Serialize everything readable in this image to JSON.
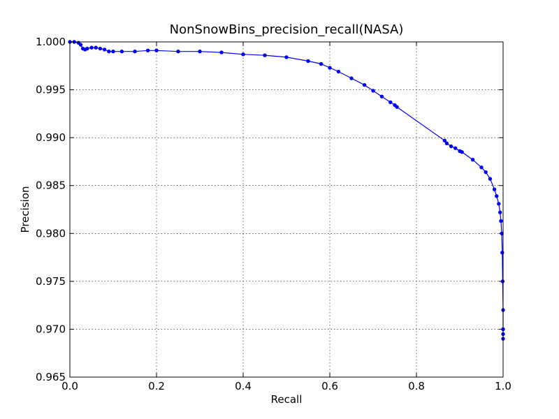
{
  "chart_data": {
    "type": "line",
    "title": "NonSnowBins_precision_recall(NASA)",
    "xlabel": "Recall",
    "ylabel": "Precision",
    "xlim": [
      0.0,
      1.0
    ],
    "ylim": [
      0.965,
      1.0
    ],
    "xticks": [
      "0.0",
      "0.2",
      "0.4",
      "0.6",
      "0.8",
      "1.0"
    ],
    "yticks": [
      "0.965",
      "0.970",
      "0.975",
      "0.980",
      "0.985",
      "0.990",
      "0.995",
      "1.000"
    ],
    "grid": true,
    "line_color": "#0000ff",
    "marker": "dot",
    "series": [
      {
        "x": [
          0.0,
          0.01,
          0.02,
          0.025,
          0.03,
          0.035,
          0.04,
          0.05,
          0.06,
          0.07,
          0.08,
          0.09,
          0.1,
          0.12,
          0.15,
          0.18,
          0.2,
          0.25,
          0.3,
          0.35,
          0.4,
          0.45,
          0.5,
          0.55,
          0.58,
          0.6,
          0.62,
          0.65,
          0.68,
          0.7,
          0.72,
          0.74,
          0.75,
          0.755,
          0.865,
          0.87,
          0.88,
          0.89,
          0.9,
          0.905,
          0.93,
          0.95,
          0.96,
          0.97,
          0.98,
          0.985,
          0.99,
          0.993,
          0.995,
          0.997,
          0.998,
          0.999,
          1.0,
          1.0,
          1.0,
          1.0
        ],
        "y": [
          1.0,
          1.0,
          0.9999,
          0.9997,
          0.9993,
          0.9992,
          0.9993,
          0.9994,
          0.9994,
          0.9993,
          0.9992,
          0.999,
          0.999,
          0.999,
          0.999,
          0.9991,
          0.9991,
          0.999,
          0.999,
          0.9989,
          0.9987,
          0.9986,
          0.9984,
          0.998,
          0.9977,
          0.9973,
          0.9969,
          0.9962,
          0.9955,
          0.9949,
          0.9943,
          0.9937,
          0.9934,
          0.9932,
          0.9897,
          0.9894,
          0.9891,
          0.9889,
          0.9886,
          0.9885,
          0.9877,
          0.9869,
          0.9864,
          0.9857,
          0.9846,
          0.9839,
          0.9831,
          0.9822,
          0.9813,
          0.98,
          0.978,
          0.975,
          0.972,
          0.97,
          0.9695,
          0.969
        ]
      }
    ]
  }
}
